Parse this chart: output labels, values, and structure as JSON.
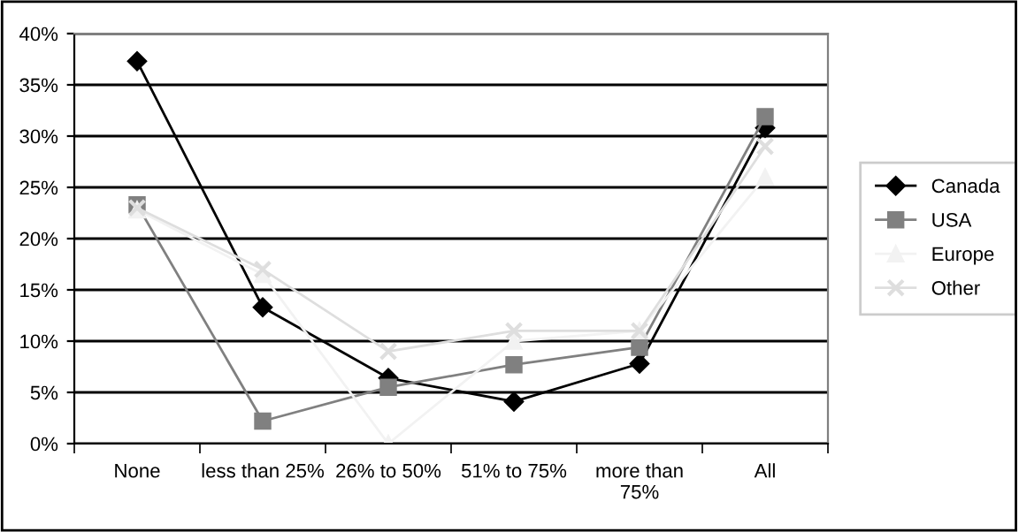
{
  "chart_data": {
    "type": "line",
    "categories": [
      "None",
      "less than 25%",
      "26% to 50%",
      "51% to 75%",
      "more than\n75%",
      "All"
    ],
    "series": [
      {
        "name": "Canada",
        "color": "#000000",
        "marker": "diamond",
        "values": [
          37.3,
          13.3,
          6.4,
          4.1,
          7.8,
          30.8
        ]
      },
      {
        "name": "USA",
        "color": "#808080",
        "marker": "square",
        "values": [
          23.3,
          2.2,
          5.5,
          7.7,
          9.4,
          31.9
        ]
      },
      {
        "name": "Europe",
        "color": "#f2f2f2",
        "marker": "triangle",
        "values": [
          22.8,
          16.5,
          0.0,
          10.0,
          11.0,
          26.0
        ]
      },
      {
        "name": "Other",
        "color": "#dedede",
        "marker": "cross",
        "values": [
          23.0,
          17.0,
          9.0,
          11.0,
          11.0,
          29.0
        ]
      }
    ],
    "ylim": [
      0,
      40
    ],
    "yticks": [
      {
        "value": 0,
        "label": "0%"
      },
      {
        "value": 5,
        "label": "5%"
      },
      {
        "value": 10,
        "label": "10%"
      },
      {
        "value": 15,
        "label": "15%"
      },
      {
        "value": 20,
        "label": "20%"
      },
      {
        "value": 25,
        "label": "25%"
      },
      {
        "value": 30,
        "label": "30%"
      },
      {
        "value": 35,
        "label": "35%"
      },
      {
        "value": 40,
        "label": "40%"
      }
    ],
    "grid": "y",
    "legend": "right"
  }
}
